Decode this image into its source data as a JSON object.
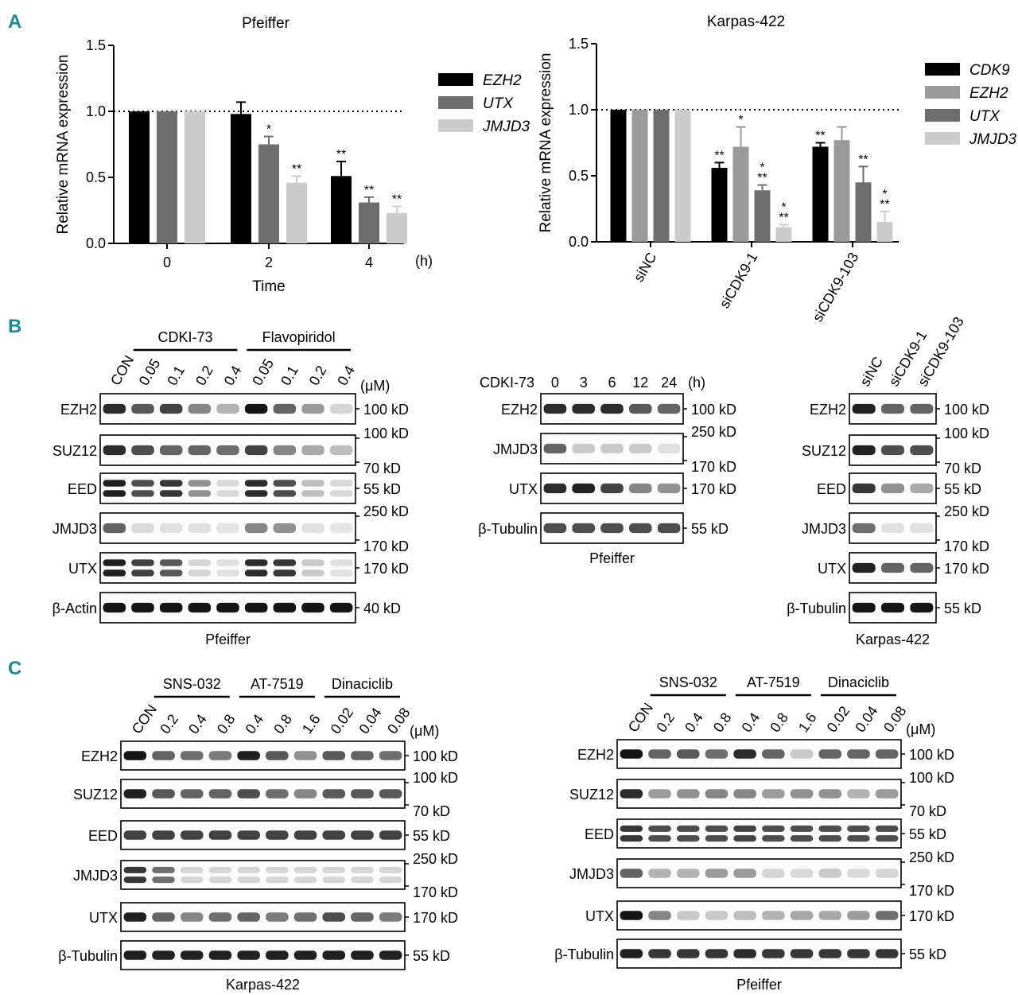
{
  "colors": {
    "panel_letter": "#1a8a96",
    "series_black": "#000000",
    "series_darkgray": "#6d6d6d",
    "series_midgray": "#9a9a9a",
    "series_lightgray": "#cccccc"
  },
  "panel_labels": {
    "a": "A",
    "b": "B",
    "c": "C"
  },
  "chart_data": [
    {
      "type": "bar",
      "title": "Pfeiffer",
      "xlabel": "Time",
      "x_unit": "(h)",
      "ylabel": "Relative mRNA expression",
      "ylim": [
        0,
        1.5
      ],
      "yticks": [
        "0.0",
        "0.5",
        "1.0",
        "1.5"
      ],
      "categories": [
        "0",
        "2",
        "4"
      ],
      "reference_line": 1.0,
      "legend_position": "right",
      "series": [
        {
          "name": "EZH2",
          "color": "#000000",
          "values": [
            1.0,
            0.98,
            0.51
          ],
          "errors": [
            0,
            0.09,
            0.11
          ],
          "sig": [
            "",
            "",
            "**"
          ]
        },
        {
          "name": "UTX",
          "color": "#6d6d6d",
          "values": [
            1.0,
            0.75,
            0.31
          ],
          "errors": [
            0,
            0.06,
            0.04
          ],
          "sig": [
            "",
            "*",
            "**"
          ]
        },
        {
          "name": "JMJD3",
          "color": "#cccccc",
          "values": [
            1.0,
            0.46,
            0.23
          ],
          "errors": [
            0,
            0.05,
            0.05
          ],
          "sig": [
            "",
            "**",
            "**"
          ]
        }
      ]
    },
    {
      "type": "bar",
      "title": "Karpas-422",
      "ylabel": "Relative mRNA expression",
      "ylim": [
        0,
        1.5
      ],
      "yticks": [
        "0.0",
        "0.5",
        "1.0",
        "1.5"
      ],
      "categories": [
        "siNC",
        "siCDK9-1",
        "siCDK9-103"
      ],
      "reference_line": 1.0,
      "legend_position": "right",
      "series": [
        {
          "name": "CDK9",
          "color": "#000000",
          "values": [
            1.0,
            0.56,
            0.72
          ],
          "errors": [
            0,
            0.04,
            0.03
          ],
          "sig": [
            "",
            "**",
            "**"
          ]
        },
        {
          "name": "EZH2",
          "color": "#9a9a9a",
          "values": [
            1.0,
            0.72,
            0.77
          ],
          "errors": [
            0,
            0.15,
            0.1
          ],
          "sig": [
            "",
            "*",
            ""
          ]
        },
        {
          "name": "UTX",
          "color": "#6d6d6d",
          "values": [
            1.0,
            0.39,
            0.45
          ],
          "errors": [
            0,
            0.04,
            0.12
          ],
          "sig": [
            "",
            "*|**",
            "**"
          ]
        },
        {
          "name": "JMJD3",
          "color": "#cccccc",
          "values": [
            1.0,
            0.11,
            0.15
          ],
          "errors": [
            0,
            0.02,
            0.08
          ],
          "sig": [
            "",
            "*|**",
            "*|**"
          ]
        }
      ]
    }
  ],
  "blots": {
    "b1": {
      "caption": "Pfeiffer",
      "groups": [
        {
          "label": "CDKI-73"
        },
        {
          "label": "Flavopiridol"
        }
      ],
      "lanes": [
        "CON",
        "0.05",
        "0.1",
        "0.2",
        "0.4",
        "0.05",
        "0.1",
        "0.2",
        "0.4"
      ],
      "unit": "(μM)",
      "rows": [
        {
          "label": "EZH2",
          "markers": [
            "100 kD"
          ],
          "intensity": [
            0.85,
            0.65,
            0.75,
            0.45,
            0.25,
            0.95,
            0.6,
            0.35,
            0.1
          ],
          "double": false
        },
        {
          "label": "SUZ12",
          "markers": [
            "100 kD",
            "70 kD"
          ],
          "intensity": [
            0.85,
            0.7,
            0.6,
            0.6,
            0.55,
            0.75,
            0.45,
            0.3,
            0.2
          ],
          "double": false
        },
        {
          "label": "EED",
          "markers": [
            "55 kD"
          ],
          "intensity": [
            0.9,
            0.7,
            0.8,
            0.4,
            0.08,
            0.85,
            0.7,
            0.2,
            0.08
          ],
          "double": true
        },
        {
          "label": "JMJD3",
          "markers": [
            "250 kD",
            "170 kD"
          ],
          "intensity": [
            0.6,
            0.08,
            0.05,
            0.05,
            0.03,
            0.45,
            0.4,
            0.05,
            0.03
          ],
          "double": false
        },
        {
          "label": "UTX",
          "markers": [
            "170 kD"
          ],
          "intensity": [
            0.9,
            0.75,
            0.65,
            0.1,
            0.05,
            0.85,
            0.8,
            0.15,
            0.05
          ],
          "double": true
        },
        {
          "label": "β-Actin",
          "markers": [
            "40 kD"
          ],
          "intensity": [
            0.95,
            0.95,
            0.95,
            0.95,
            0.95,
            0.95,
            0.95,
            0.95,
            0.95
          ],
          "double": false
        }
      ]
    },
    "b2": {
      "caption": "Pfeiffer",
      "treatment": "CDKI-73",
      "lanes": [
        "0",
        "3",
        "6",
        "12",
        "24"
      ],
      "unit": "(h)",
      "rows": [
        {
          "label": "EZH2",
          "markers": [
            "100 kD"
          ],
          "intensity": [
            0.85,
            0.85,
            0.85,
            0.65,
            0.6
          ],
          "double": false
        },
        {
          "label": "JMJD3",
          "markers": [
            "250 kD",
            "170 kD"
          ],
          "intensity": [
            0.6,
            0.15,
            0.15,
            0.15,
            0.05
          ],
          "double": false
        },
        {
          "label": "UTX",
          "markers": [
            "170 kD"
          ],
          "intensity": [
            0.85,
            0.9,
            0.75,
            0.45,
            0.4
          ],
          "double": false
        },
        {
          "label": "β-Tubulin",
          "markers": [
            "55 kD"
          ],
          "intensity": [
            0.7,
            0.7,
            0.7,
            0.7,
            0.7
          ],
          "double": false
        }
      ]
    },
    "b3": {
      "caption": "Karpas-422",
      "lanes": [
        "siNC",
        "siCDK9-1",
        "siCDK9-103"
      ],
      "rows": [
        {
          "label": "EZH2",
          "markers": [
            "100 kD"
          ],
          "intensity": [
            0.9,
            0.6,
            0.6
          ],
          "double": false
        },
        {
          "label": "SUZ12",
          "markers": [
            "100 kD",
            "70 kD"
          ],
          "intensity": [
            0.9,
            0.7,
            0.7
          ],
          "double": false
        },
        {
          "label": "EED",
          "markers": [
            "55 kD"
          ],
          "intensity": [
            0.8,
            0.4,
            0.3
          ],
          "double": false
        },
        {
          "label": "JMJD3",
          "markers": [
            "250 kD",
            "170 kD"
          ],
          "intensity": [
            0.55,
            0.05,
            0.05
          ],
          "double": false
        },
        {
          "label": "UTX",
          "markers": [
            "170 kD"
          ],
          "intensity": [
            0.9,
            0.6,
            0.6
          ],
          "double": false
        },
        {
          "label": "β-Tubulin",
          "markers": [
            "55 kD"
          ],
          "intensity": [
            0.95,
            0.95,
            0.95
          ],
          "double": false
        }
      ]
    },
    "c1": {
      "caption": "Karpas-422",
      "groups": [
        {
          "label": "SNS-032"
        },
        {
          "label": "AT-7519"
        },
        {
          "label": "Dinaciclib"
        }
      ],
      "lanes": [
        "CON",
        "0.2",
        "0.4",
        "0.8",
        "0.4",
        "0.8",
        "1.6",
        "0.02",
        "0.04",
        "0.08"
      ],
      "unit": "(μM)",
      "rows": [
        {
          "label": "EZH2",
          "markers": [
            "100 kD"
          ],
          "intensity": [
            0.95,
            0.6,
            0.55,
            0.5,
            0.9,
            0.65,
            0.4,
            0.65,
            0.6,
            0.55
          ],
          "double": false
        },
        {
          "label": "SUZ12",
          "markers": [
            "100 kD",
            "70 kD"
          ],
          "intensity": [
            0.9,
            0.65,
            0.6,
            0.6,
            0.7,
            0.55,
            0.45,
            0.65,
            0.65,
            0.65
          ],
          "double": false
        },
        {
          "label": "EED",
          "markers": [
            "55 kD"
          ],
          "intensity": [
            0.75,
            0.75,
            0.75,
            0.75,
            0.75,
            0.75,
            0.75,
            0.75,
            0.75,
            0.75
          ],
          "double": false
        },
        {
          "label": "JMJD3",
          "markers": [
            "250 kD",
            "170 kD"
          ],
          "intensity": [
            0.8,
            0.55,
            0.1,
            0.1,
            0.1,
            0.1,
            0.1,
            0.1,
            0.1,
            0.1
          ],
          "double": true
        },
        {
          "label": "UTX",
          "markers": [
            "170 kD"
          ],
          "intensity": [
            0.9,
            0.6,
            0.45,
            0.55,
            0.6,
            0.5,
            0.55,
            0.7,
            0.6,
            0.5
          ],
          "double": false
        },
        {
          "label": "β-Tubulin",
          "markers": [
            "55 kD"
          ],
          "intensity": [
            0.9,
            0.9,
            0.9,
            0.9,
            0.9,
            0.9,
            0.9,
            0.9,
            0.9,
            0.9
          ],
          "double": false
        }
      ]
    },
    "c2": {
      "caption": "Pfeiffer",
      "groups": [
        {
          "label": "SNS-032"
        },
        {
          "label": "AT-7519"
        },
        {
          "label": "Dinaciclib"
        }
      ],
      "lanes": [
        "CON",
        "0.2",
        "0.4",
        "0.8",
        "0.4",
        "0.8",
        "1.6",
        "0.02",
        "0.04",
        "0.08"
      ],
      "unit": "(μM)",
      "rows": [
        {
          "label": "EZH2",
          "markers": [
            "100 kD"
          ],
          "intensity": [
            0.95,
            0.6,
            0.65,
            0.55,
            0.85,
            0.6,
            0.15,
            0.6,
            0.6,
            0.6
          ],
          "double": false
        },
        {
          "label": "SUZ12",
          "markers": [
            "100 kD",
            "70 kD"
          ],
          "intensity": [
            0.85,
            0.35,
            0.4,
            0.45,
            0.45,
            0.35,
            0.4,
            0.4,
            0.25,
            0.35
          ],
          "double": false
        },
        {
          "label": "EED",
          "markers": [
            "55 kD"
          ],
          "intensity": [
            0.8,
            0.7,
            0.7,
            0.7,
            0.75,
            0.7,
            0.7,
            0.7,
            0.7,
            0.7
          ],
          "double": true
        },
        {
          "label": "JMJD3",
          "markers": [
            "250 kD",
            "170 kD"
          ],
          "intensity": [
            0.6,
            0.25,
            0.25,
            0.35,
            0.35,
            0.1,
            0.08,
            0.15,
            0.08,
            0.1
          ],
          "double": false
        },
        {
          "label": "UTX",
          "markers": [
            "170 kD"
          ],
          "intensity": [
            0.95,
            0.45,
            0.15,
            0.15,
            0.2,
            0.25,
            0.3,
            0.3,
            0.35,
            0.55
          ],
          "double": false
        },
        {
          "label": "β-Tubulin",
          "markers": [
            "55 kD"
          ],
          "intensity": [
            0.9,
            0.8,
            0.8,
            0.8,
            0.85,
            0.8,
            0.8,
            0.8,
            0.8,
            0.8
          ],
          "double": false
        }
      ]
    }
  }
}
